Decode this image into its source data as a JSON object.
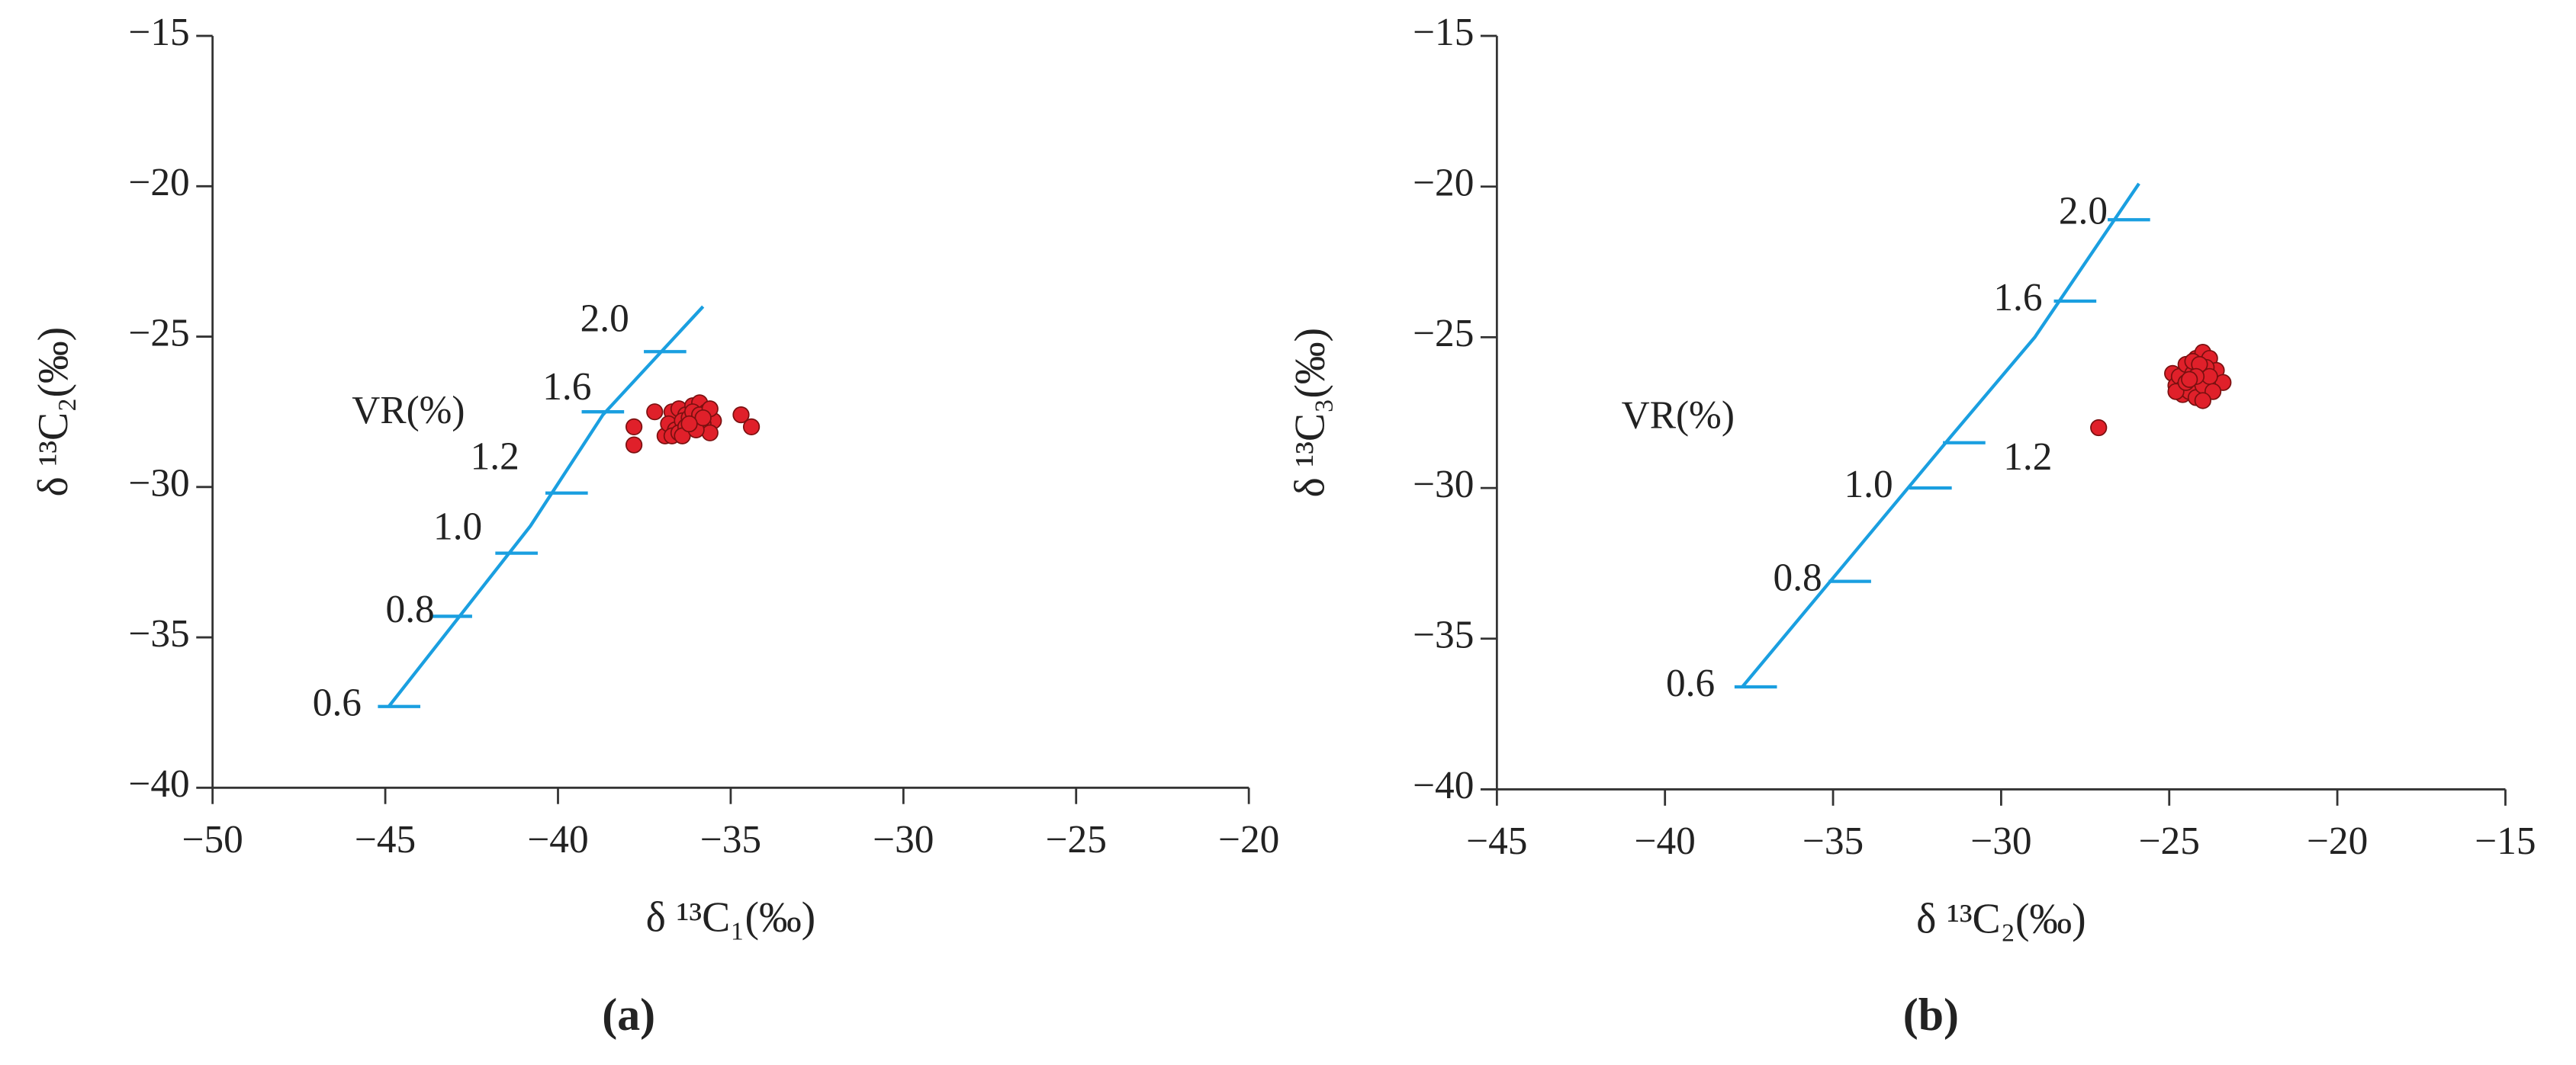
{
  "chart_data": [
    {
      "type": "scatter",
      "panel_label": "(a)",
      "x_label": "δ ¹³C₁(‰)",
      "y_label": "δ ¹³C₂(‰)",
      "annotation": "VR(%)",
      "xlim": [
        -50,
        -20
      ],
      "ylim": [
        -40,
        -15
      ],
      "xticks": [
        {
          "value": -50,
          "label": "−50"
        },
        {
          "value": -45,
          "label": "−45"
        },
        {
          "value": -40,
          "label": "−40"
        },
        {
          "value": -35,
          "label": "−35"
        },
        {
          "value": -30,
          "label": "−30"
        },
        {
          "value": -25,
          "label": "−25"
        },
        {
          "value": -20,
          "label": "−20"
        }
      ],
      "yticks": [
        {
          "value": -40,
          "label": "−40"
        },
        {
          "value": -35,
          "label": "−35"
        },
        {
          "value": -30,
          "label": "−30"
        },
        {
          "value": -25,
          "label": "−25"
        },
        {
          "value": -20,
          "label": "−20"
        },
        {
          "value": -15,
          "label": "−15"
        }
      ],
      "series": [
        {
          "color": "#e0202a",
          "x": [
            -37.8,
            -37.8,
            -37.2,
            -36.9,
            -36.7,
            -36.5,
            -36.3,
            -36.1,
            -35.9,
            -35.7,
            -35.5,
            -36.8,
            -36.6,
            -36.4,
            -36.2,
            -36.0,
            -35.8,
            -35.6,
            -36.7,
            -36.5,
            -36.3,
            -36.1,
            -35.9,
            -35.6,
            -36.4,
            -36.0,
            -35.8,
            -34.7,
            -34.4,
            -36.2
          ],
          "values": [
            -28.0,
            -28.6,
            -27.5,
            -28.3,
            -27.5,
            -27.4,
            -27.6,
            -27.3,
            -27.2,
            -27.5,
            -27.8,
            -27.9,
            -28.1,
            -27.8,
            -27.7,
            -28.0,
            -27.9,
            -28.2,
            -28.3,
            -28.2,
            -28.0,
            -27.5,
            -27.6,
            -27.4,
            -28.3,
            -28.1,
            -27.7,
            -27.6,
            -28.0,
            -27.9
          ]
        }
      ],
      "vr_curve": {
        "color": "#1a9fe0",
        "x": [
          -44.9,
          -40.8,
          -38.7,
          -35.8
        ],
        "y": [
          -37.3,
          -31.3,
          -27.6,
          -24.0
        ]
      },
      "vr_marks": {
        "labels": [
          "0.6",
          "0.8",
          "1.0",
          "1.2",
          "1.6",
          "2.0"
        ],
        "x": [
          -44.6,
          -43.1,
          -41.2,
          -39.75,
          -38.7,
          -36.9
        ],
        "y": [
          -37.3,
          -34.3,
          -32.2,
          -30.2,
          -27.5,
          -25.5
        ]
      }
    },
    {
      "type": "scatter",
      "panel_label": "(b)",
      "x_label": "δ ¹³C₂(‰)",
      "y_label": "δ ¹³C₃(‰)",
      "annotation": "VR(%)",
      "xlim": [
        -45,
        -15
      ],
      "ylim": [
        -40,
        -15
      ],
      "xticks": [
        {
          "value": -45,
          "label": "−45"
        },
        {
          "value": -40,
          "label": "−40"
        },
        {
          "value": -35,
          "label": "−35"
        },
        {
          "value": -30,
          "label": "−30"
        },
        {
          "value": -25,
          "label": "−25"
        },
        {
          "value": -20,
          "label": "−20"
        },
        {
          "value": -15,
          "label": "−15"
        }
      ],
      "yticks": [
        {
          "value": -40,
          "label": "−40"
        },
        {
          "value": -35,
          "label": "−35"
        },
        {
          "value": -30,
          "label": "−30"
        },
        {
          "value": -25,
          "label": "−25"
        },
        {
          "value": -20,
          "label": "−20"
        },
        {
          "value": -15,
          "label": "−15"
        }
      ],
      "series": [
        {
          "color": "#e0202a",
          "x": [
            -27.1,
            -24.9,
            -24.8,
            -24.6,
            -24.4,
            -24.2,
            -24.0,
            -23.8,
            -23.6,
            -23.4,
            -24.7,
            -24.5,
            -24.3,
            -24.1,
            -23.9,
            -24.6,
            -24.4,
            -24.2,
            -24.0,
            -23.8,
            -24.8,
            -24.5,
            -24.3,
            -24.1,
            -23.7,
            -24.2,
            -24.0,
            -24.4
          ],
          "values": [
            -28.0,
            -26.2,
            -26.6,
            -26.9,
            -26.0,
            -25.7,
            -25.5,
            -25.7,
            -26.1,
            -26.5,
            -26.3,
            -25.9,
            -26.2,
            -26.5,
            -26.0,
            -26.7,
            -26.8,
            -27.0,
            -26.6,
            -26.3,
            -26.8,
            -26.5,
            -25.8,
            -25.9,
            -26.8,
            -26.3,
            -27.1,
            -26.4
          ]
        }
      ],
      "vr_curve": {
        "color": "#1a9fe0",
        "x": [
          -37.7,
          -31.5,
          -29.0,
          -25.9
        ],
        "y": [
          -36.6,
          -28.3,
          -25.0,
          -19.9
        ]
      },
      "vr_marks": {
        "labels": [
          "0.6",
          "0.8",
          "1.0",
          "1.2",
          "1.6",
          "2.0"
        ],
        "x": [
          -37.3,
          -34.5,
          -32.1,
          -31.1,
          -27.8,
          -26.2
        ],
        "y": [
          -36.6,
          -33.1,
          -30.0,
          -28.5,
          -23.8,
          -21.1
        ]
      }
    }
  ]
}
